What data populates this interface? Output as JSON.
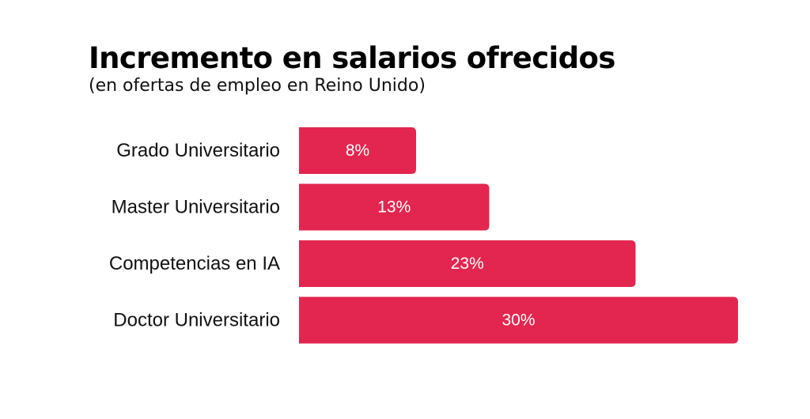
{
  "title": "Incremento en salarios ofrecidos",
  "subtitle": "(en ofertas de empleo en Reino Unido)",
  "colors": {
    "bar": "#e3264f",
    "bar_label": "#ffffff",
    "category_label": "#111111"
  },
  "chart_data": {
    "type": "bar",
    "orientation": "horizontal",
    "title": "Incremento en salarios ofrecidos",
    "subtitle": "(en ofertas de empleo en Reino Unido)",
    "categories": [
      "Grado Universitario",
      "Master Universitario",
      "Competencias en IA",
      "Doctor Universitario"
    ],
    "values": [
      8,
      13,
      23,
      30
    ],
    "value_labels": [
      "8%",
      "13%",
      "23%",
      "30%"
    ],
    "unit": "%",
    "grid": false,
    "legend": "none"
  }
}
